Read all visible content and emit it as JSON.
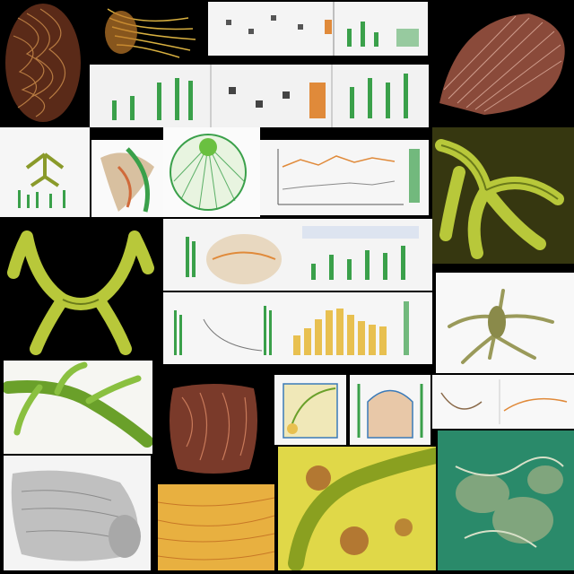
{
  "collage": {
    "background": "#000000",
    "tiles": [
      {
        "subject": "brown-coiled-tissue",
        "color": "#8a4a2a"
      },
      {
        "subject": "yellow-fiber-bundle",
        "color": "#c9a23a"
      },
      {
        "subject": "green-bar-chart-panel",
        "color": "#3aa04a"
      },
      {
        "subject": "brown-fan-shell",
        "color": "#a0584a"
      },
      {
        "subject": "green-branching-structure",
        "color": "#b8c83a"
      },
      {
        "subject": "circular-fan-diagram",
        "color": "#58b858"
      },
      {
        "subject": "line-plot-panel",
        "color": "#e08a3a"
      },
      {
        "subject": "yellow-bar-chart",
        "color": "#e8c050"
      },
      {
        "subject": "green-vine",
        "color": "#6aa02a"
      },
      {
        "subject": "brown-folded-tissue",
        "color": "#9a4a3a"
      },
      {
        "subject": "grey-sculpture",
        "color": "#b8b8b8"
      },
      {
        "subject": "orange-gradient-texture",
        "color": "#e8a030"
      },
      {
        "subject": "yellow-green-stem",
        "color": "#d8d040"
      },
      {
        "subject": "teal-branching-cluster",
        "color": "#2a9a6a"
      }
    ]
  }
}
